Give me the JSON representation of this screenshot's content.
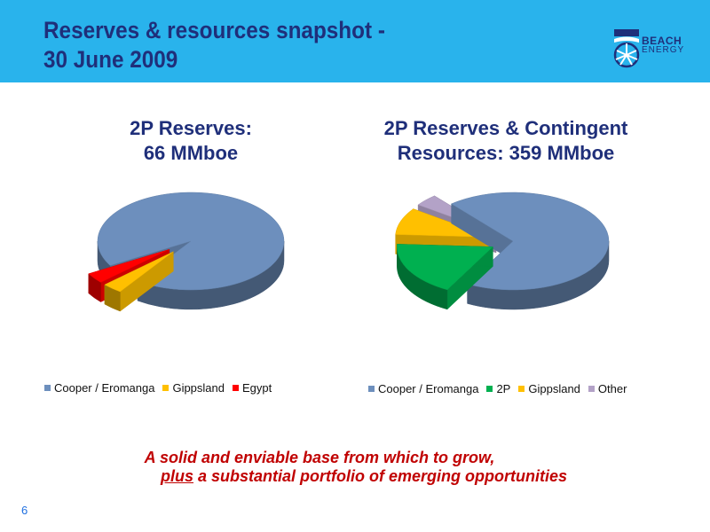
{
  "header": {
    "title_line1": "Reserves & resources snapshot -",
    "title_line2": "30 June 2009",
    "logo_text": "BEACH",
    "logo_sub": "ENERGY"
  },
  "colors": {
    "header_bg": "#29b3ec",
    "title": "#1f2f7a",
    "tagline": "#c00000"
  },
  "chart_data": [
    {
      "type": "pie",
      "style": "3d-exploded",
      "title": "2P Reserves:\n66 MMboe",
      "title_line1": "2P Reserves:",
      "title_line2": "66 MMboe",
      "legend_position": "bottom",
      "series": [
        {
          "name": "Cooper / Eromanga",
          "value": 93,
          "color": "#6d8fbd"
        },
        {
          "name": "Gippsland",
          "value": 3.5,
          "color": "#ffc000"
        },
        {
          "name": "Egypt",
          "value": 3.5,
          "color": "#ff0000"
        }
      ]
    },
    {
      "type": "pie",
      "style": "3d-exploded",
      "title": "2P Reserves & Contingent\nResources: 359 MMboe",
      "title_line1": "2P Reserves & Contingent",
      "title_line2": "Resources: 359 MMboe",
      "legend_position": "bottom",
      "series": [
        {
          "name": "Cooper / Eromanga",
          "value": 69,
          "color": "#6d8fbd"
        },
        {
          "name": "2P",
          "value": 18,
          "color": "#00b050"
        },
        {
          "name": "Gippsland",
          "value": 9,
          "color": "#ffc000"
        },
        {
          "name": "Other",
          "value": 4,
          "color": "#b3a2c7"
        }
      ]
    }
  ],
  "tagline": {
    "line1": "A solid and enviable base from which to grow,",
    "line2_emph": "plus",
    "line2_rest": " a substantial portfolio of emerging opportunities"
  },
  "page_number": "6"
}
